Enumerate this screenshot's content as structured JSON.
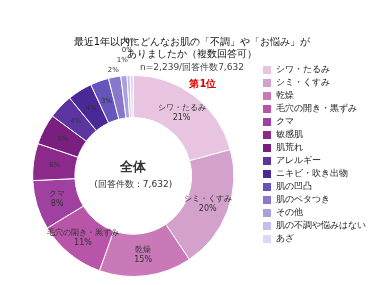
{
  "chart_data": {
    "type": "doughnut",
    "title": [
      "最近1年以内にどんなお肌の「不調」や「お悩み」が",
      "ありましたか（複数回答可）"
    ],
    "subtitle": "n=2,239/回答件数7,632",
    "center_text": [
      "全体",
      "(回答件数：7,632)"
    ],
    "annotations": [
      {
        "text": "第1位",
        "color": "#dd0000"
      }
    ],
    "categories": [
      "シワ・たるみ",
      "シミ・くすみ",
      "乾燥",
      "毛穴の開き・黒ずみ",
      "クマ",
      "敏感肌",
      "肌荒れ",
      "アレルギー",
      "ニキビ・吹き出物",
      "肌の凹凸",
      "肌のベタつき",
      "その他",
      "肌の不調や悩みはない",
      "あざ"
    ],
    "values": [
      21,
      20,
      15,
      11,
      8,
      6,
      5,
      4,
      4,
      3,
      2,
      1,
      0.5,
      0.5
    ],
    "value_labels": [
      "シワ・たるみ\n21%",
      "シミ・くすみ\n20%",
      "乾燥\n15%",
      "毛穴の開き・黒ずみ\n11%",
      "クマ\n8%",
      "6%",
      "5%",
      "4%",
      "4%",
      "3%",
      "2%",
      "1%",
      "0%",
      "0%"
    ],
    "colors": [
      "#e8c4e0",
      "#d4a0cc",
      "#c978b8",
      "#b855a8",
      "#a040a0",
      "#8b2a8b",
      "#7a1f80",
      "#5c35a0",
      "#4a2898",
      "#6655bb",
      "#8877cc",
      "#aaa0dd",
      "#c8bcec",
      "#dcd8f4"
    ],
    "data_labels": true,
    "legend": "right"
  }
}
